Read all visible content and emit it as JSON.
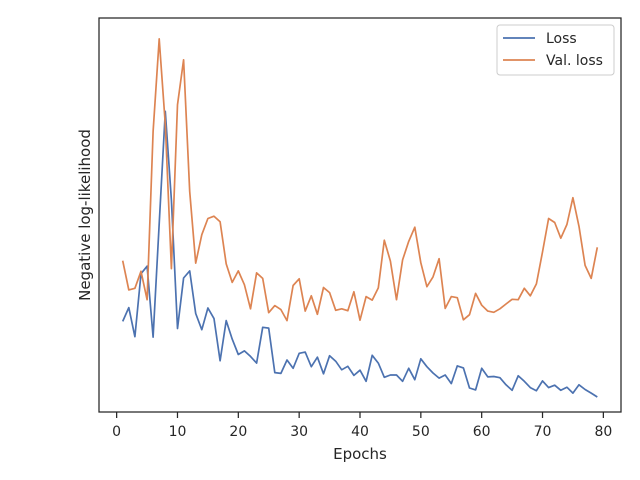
{
  "chart_data": {
    "type": "line",
    "xlabel": "Epochs",
    "ylabel": "Negative log-likelihood",
    "xlim": [
      -2.9,
      82.9
    ],
    "ylim": [
      0,
      1
    ],
    "y_scale": "linear",
    "y_ticks_shown": false,
    "grid": false,
    "legend_position": "top-right",
    "x_ticks": [
      0,
      10,
      20,
      30,
      40,
      50,
      60,
      70,
      80
    ],
    "x_tick_labels": [
      "0",
      "10",
      "20",
      "30",
      "40",
      "50",
      "60",
      "70",
      "80"
    ],
    "x": [
      1,
      2,
      3,
      4,
      5,
      6,
      7,
      8,
      9,
      10,
      11,
      12,
      13,
      14,
      15,
      16,
      17,
      18,
      19,
      20,
      21,
      22,
      23,
      24,
      25,
      26,
      27,
      28,
      29,
      30,
      31,
      32,
      33,
      34,
      35,
      36,
      37,
      38,
      39,
      40,
      41,
      42,
      43,
      44,
      45,
      46,
      47,
      48,
      49,
      50,
      51,
      52,
      53,
      54,
      55,
      56,
      57,
      58,
      59,
      60,
      61,
      62,
      63,
      64,
      65,
      66,
      67,
      68,
      69,
      70,
      71,
      72,
      73,
      74,
      75,
      76,
      77,
      78,
      79
    ],
    "series": [
      {
        "name": "Loss",
        "color": "#4c72b0",
        "values": [
          0.23,
          0.265,
          0.191,
          0.351,
          0.37,
          0.19,
          0.478,
          0.763,
          0.538,
          0.212,
          0.34,
          0.358,
          0.25,
          0.209,
          0.264,
          0.237,
          0.13,
          0.232,
          0.185,
          0.146,
          0.155,
          0.141,
          0.124,
          0.215,
          0.213,
          0.1,
          0.098,
          0.132,
          0.111,
          0.149,
          0.152,
          0.115,
          0.139,
          0.097,
          0.143,
          0.129,
          0.107,
          0.116,
          0.093,
          0.106,
          0.078,
          0.144,
          0.124,
          0.088,
          0.094,
          0.094,
          0.078,
          0.111,
          0.082,
          0.135,
          0.115,
          0.099,
          0.086,
          0.094,
          0.072,
          0.117,
          0.112,
          0.061,
          0.056,
          0.111,
          0.089,
          0.09,
          0.087,
          0.069,
          0.055,
          0.092,
          0.078,
          0.062,
          0.054,
          0.079,
          0.062,
          0.068,
          0.055,
          0.063,
          0.048,
          0.069,
          0.057,
          0.048,
          0.038
        ]
      },
      {
        "name": "Val. loss",
        "color": "#dd8452",
        "values": [
          0.384,
          0.31,
          0.314,
          0.357,
          0.285,
          0.712,
          0.947,
          0.73,
          0.364,
          0.78,
          0.894,
          0.56,
          0.378,
          0.45,
          0.491,
          0.497,
          0.483,
          0.376,
          0.329,
          0.358,
          0.323,
          0.262,
          0.353,
          0.339,
          0.252,
          0.27,
          0.26,
          0.232,
          0.321,
          0.338,
          0.256,
          0.295,
          0.248,
          0.316,
          0.303,
          0.258,
          0.262,
          0.257,
          0.305,
          0.233,
          0.293,
          0.284,
          0.315,
          0.436,
          0.383,
          0.285,
          0.386,
          0.433,
          0.469,
          0.379,
          0.318,
          0.343,
          0.389,
          0.263,
          0.293,
          0.29,
          0.234,
          0.247,
          0.301,
          0.271,
          0.256,
          0.253,
          0.262,
          0.274,
          0.286,
          0.285,
          0.314,
          0.295,
          0.325,
          0.406,
          0.491,
          0.481,
          0.441,
          0.476,
          0.544,
          0.471,
          0.372,
          0.339,
          0.418
        ]
      }
    ]
  }
}
